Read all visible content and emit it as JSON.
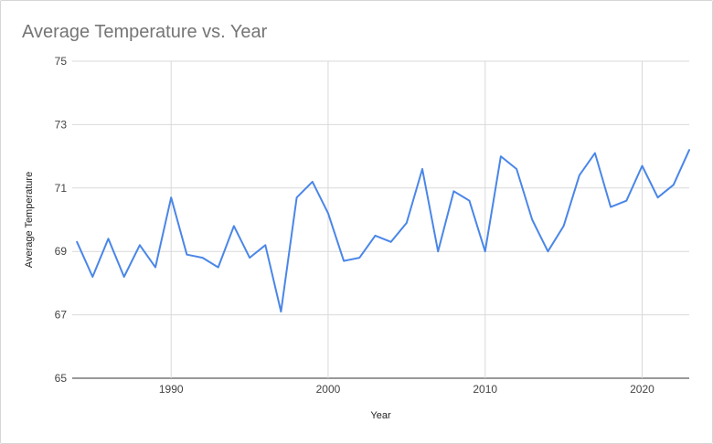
{
  "chart_data": {
    "type": "line",
    "title": "Average Temperature vs. Year",
    "xlabel": "Year",
    "ylabel": "Average Temperature",
    "xlim": [
      1983.7,
      2023
    ],
    "ylim": [
      65,
      75
    ],
    "xticks": [
      1990,
      2000,
      2010,
      2020
    ],
    "yticks": [
      65,
      67,
      69,
      71,
      73,
      75
    ],
    "grid": true,
    "legend": "none",
    "line_color": "#4a86e8",
    "series": [
      {
        "x": [
          1984,
          1985,
          1986,
          1987,
          1988,
          1989,
          1990,
          1991,
          1992,
          1993,
          1994,
          1995,
          1996,
          1997,
          1998,
          1999,
          2000,
          2001,
          2002,
          2003,
          2004,
          2005,
          2006,
          2007,
          2008,
          2009,
          2010,
          2011,
          2012,
          2013,
          2014,
          2015,
          2016,
          2017,
          2018,
          2019,
          2020,
          2021,
          2022,
          2023
        ],
        "values": [
          69.3,
          68.2,
          69.4,
          68.2,
          69.2,
          68.5,
          70.7,
          68.9,
          68.8,
          68.5,
          69.8,
          68.8,
          69.2,
          67.1,
          70.7,
          71.2,
          70.2,
          68.7,
          68.8,
          69.5,
          69.3,
          69.9,
          71.6,
          69.0,
          70.9,
          70.6,
          69.0,
          72.0,
          71.6,
          70.0,
          69.0,
          69.8,
          71.4,
          72.1,
          70.4,
          70.6,
          71.7,
          70.7,
          71.1,
          72.2
        ]
      }
    ]
  }
}
